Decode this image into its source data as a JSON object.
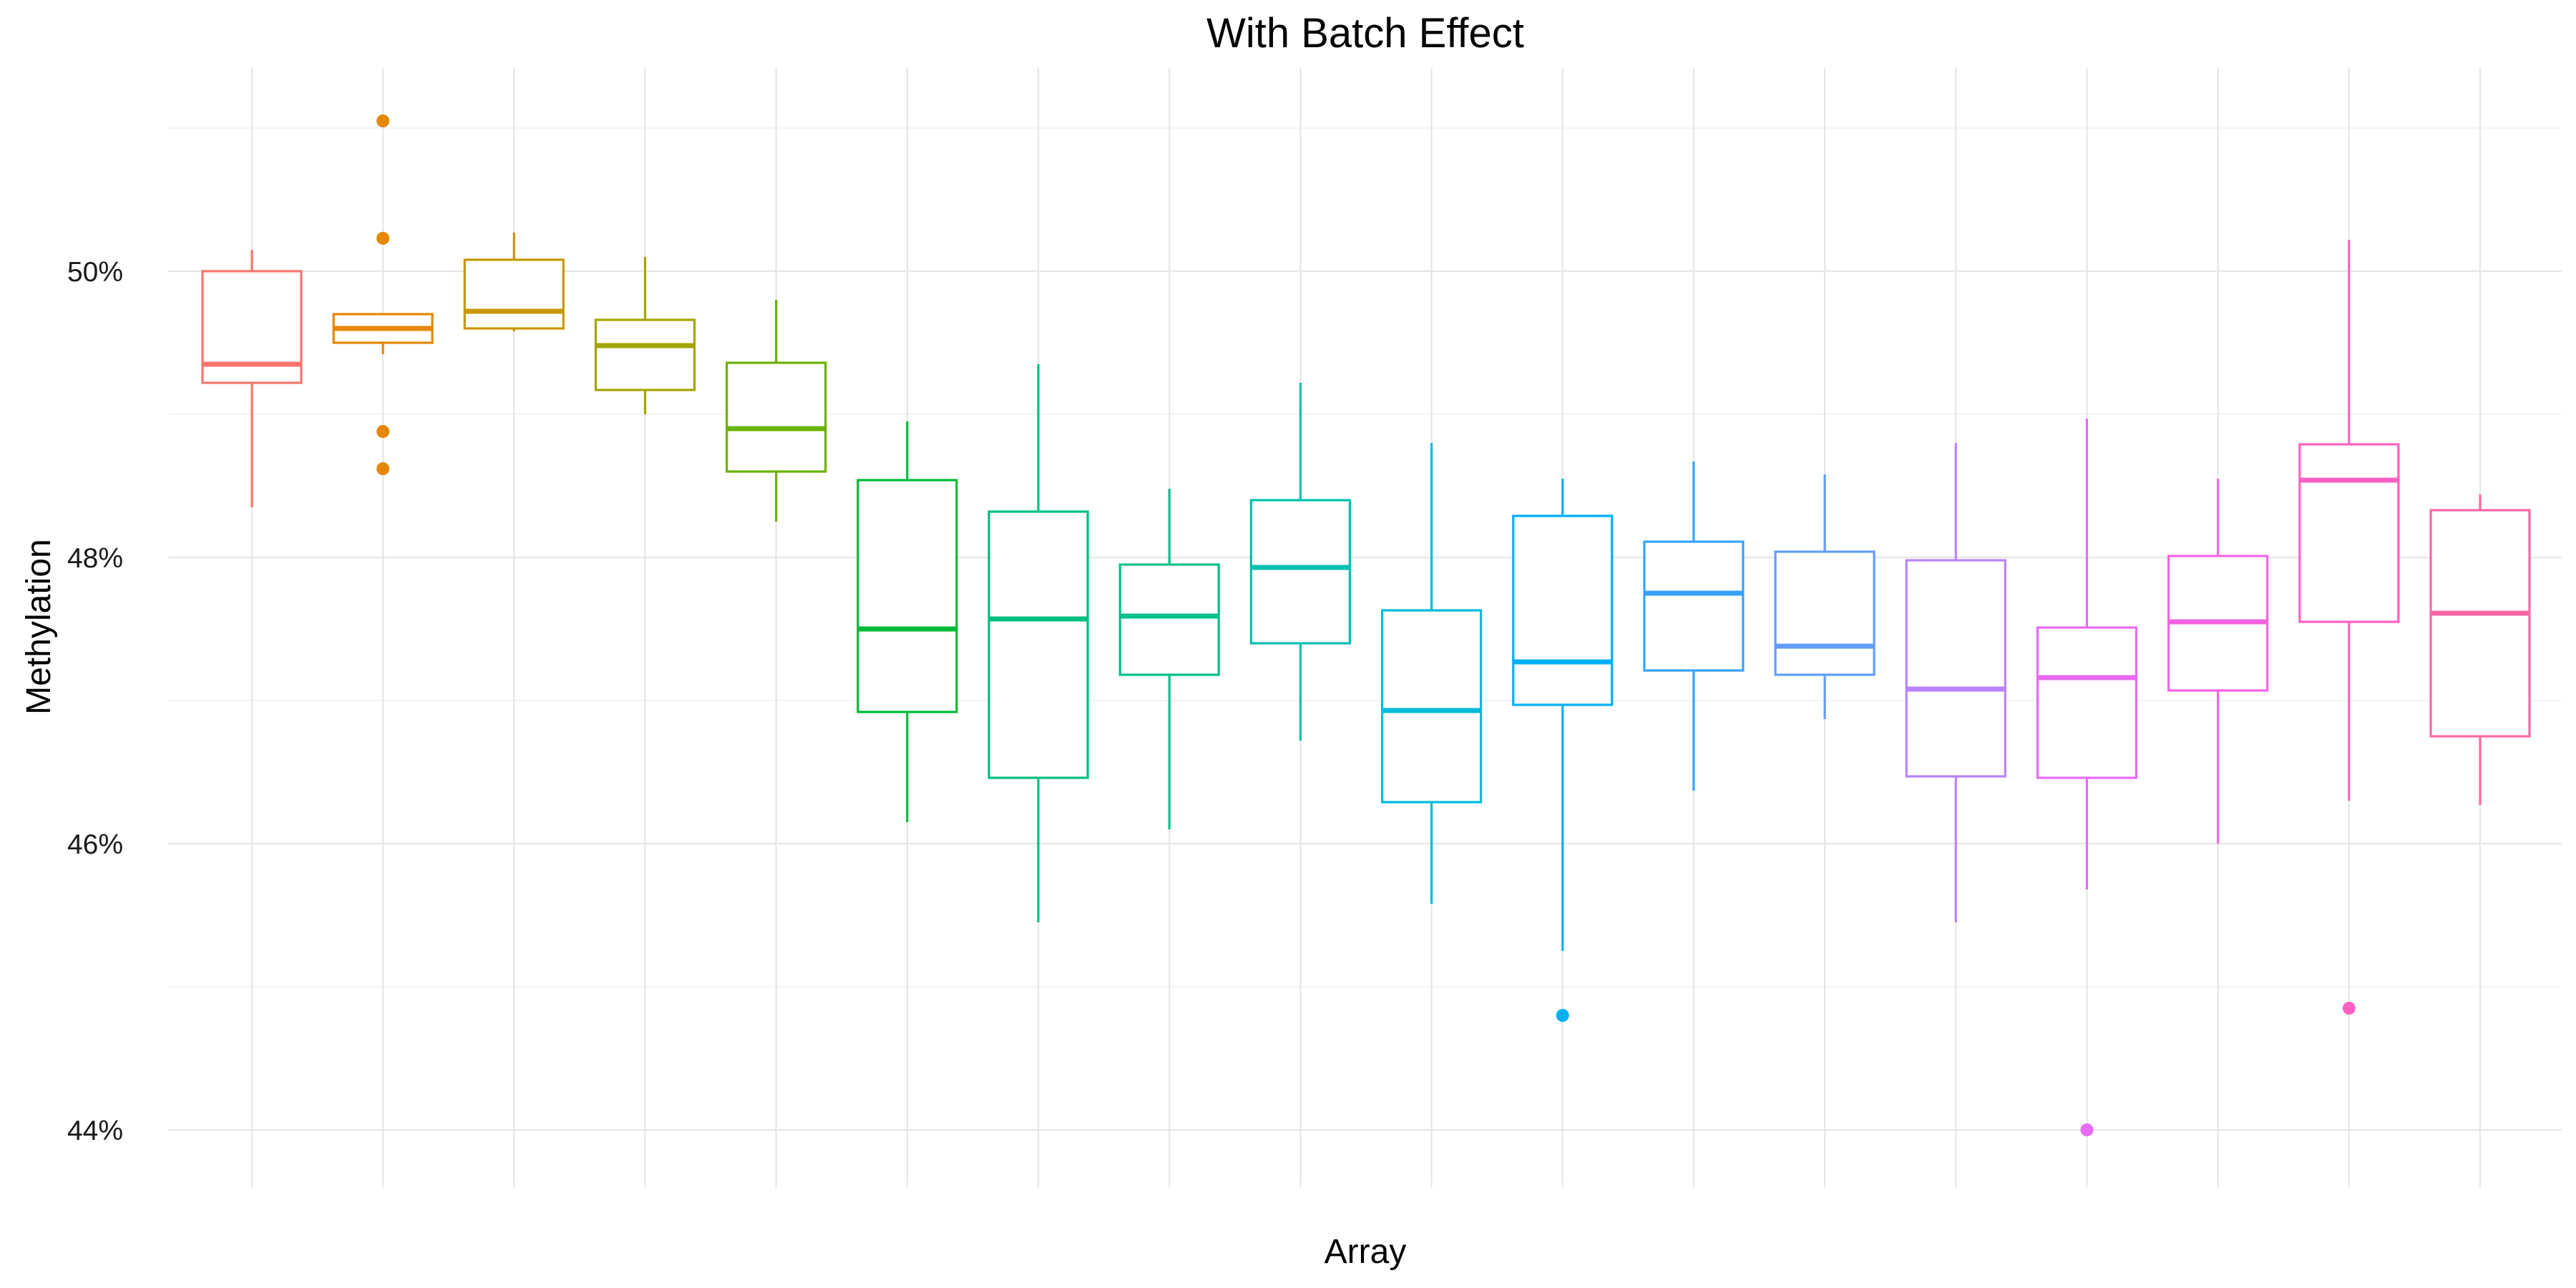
{
  "chart_data": {
    "type": "boxplot",
    "title": "With Batch Effect",
    "xlabel": "Array",
    "ylabel": "Methylation",
    "ylim": [
      43.8,
      51.3
    ],
    "y_ticks": [
      44,
      46,
      48,
      50
    ],
    "y_tick_labels": [
      "44%",
      "46%",
      "48%",
      "50%"
    ],
    "x_tick_labels_shown": false,
    "grid": true,
    "legend": "none",
    "boxes": [
      {
        "index": 1,
        "color": "#F8766D",
        "whisker_low": 48.35,
        "q1": 49.22,
        "median": 49.35,
        "q3": 50.0,
        "whisker_high": 50.15,
        "outliers": []
      },
      {
        "index": 2,
        "color": "#E58700",
        "whisker_low": 49.42,
        "q1": 49.5,
        "median": 49.6,
        "q3": 49.7,
        "whisker_high": 49.7,
        "outliers": [
          51.05,
          50.23,
          48.88,
          48.62
        ]
      },
      {
        "index": 3,
        "color": "#C99800",
        "whisker_low": 49.58,
        "q1": 49.6,
        "median": 49.72,
        "q3": 50.08,
        "whisker_high": 50.27,
        "outliers": []
      },
      {
        "index": 4,
        "color": "#A3A500",
        "whisker_low": 49.0,
        "q1": 49.17,
        "median": 49.48,
        "q3": 49.66,
        "whisker_high": 50.1,
        "outliers": []
      },
      {
        "index": 5,
        "color": "#6BB100",
        "whisker_low": 48.25,
        "q1": 48.6,
        "median": 48.9,
        "q3": 49.36,
        "whisker_high": 49.8,
        "outliers": []
      },
      {
        "index": 6,
        "color": "#00BA38",
        "whisker_low": 46.15,
        "q1": 46.92,
        "median": 47.5,
        "q3": 48.54,
        "whisker_high": 48.95,
        "outliers": []
      },
      {
        "index": 7,
        "color": "#00BF7D",
        "whisker_low": 45.45,
        "q1": 46.46,
        "median": 47.57,
        "q3": 48.32,
        "whisker_high": 49.35,
        "outliers": []
      },
      {
        "index": 8,
        "color": "#00C08B",
        "whisker_low": 46.1,
        "q1": 47.18,
        "median": 47.59,
        "q3": 47.95,
        "whisker_high": 48.48,
        "outliers": []
      },
      {
        "index": 9,
        "color": "#00C0AF",
        "whisker_low": 46.72,
        "q1": 47.4,
        "median": 47.93,
        "q3": 48.4,
        "whisker_high": 49.22,
        "outliers": []
      },
      {
        "index": 10,
        "color": "#00BCD8",
        "whisker_low": 45.58,
        "q1": 46.29,
        "median": 46.93,
        "q3": 47.63,
        "whisker_high": 48.8,
        "outliers": []
      },
      {
        "index": 11,
        "color": "#00B0F6",
        "whisker_low": 45.25,
        "q1": 46.97,
        "median": 47.27,
        "q3": 48.29,
        "whisker_high": 48.55,
        "outliers": [
          44.8
        ]
      },
      {
        "index": 12,
        "color": "#35A2FF",
        "whisker_low": 46.37,
        "q1": 47.21,
        "median": 47.75,
        "q3": 48.11,
        "whisker_high": 48.67,
        "outliers": []
      },
      {
        "index": 13,
        "color": "#619CFF",
        "whisker_low": 46.87,
        "q1": 47.18,
        "median": 47.38,
        "q3": 48.04,
        "whisker_high": 48.58,
        "outliers": []
      },
      {
        "index": 14,
        "color": "#B983FF",
        "whisker_low": 45.45,
        "q1": 46.47,
        "median": 47.08,
        "q3": 47.98,
        "whisker_high": 48.8,
        "outliers": []
      },
      {
        "index": 15,
        "color": "#E76BF3",
        "whisker_low": 45.68,
        "q1": 46.46,
        "median": 47.16,
        "q3": 47.51,
        "whisker_high": 48.97,
        "outliers": [
          44.0
        ]
      },
      {
        "index": 16,
        "color": "#F564E3",
        "whisker_low": 46.0,
        "q1": 47.07,
        "median": 47.55,
        "q3": 48.01,
        "whisker_high": 48.55,
        "outliers": []
      },
      {
        "index": 17,
        "color": "#FF61C3",
        "whisker_low": 46.3,
        "q1": 47.55,
        "median": 48.54,
        "q3": 48.79,
        "whisker_high": 50.22,
        "outliers": [
          44.85
        ]
      },
      {
        "index": 18,
        "color": "#FF67A4",
        "whisker_low": 46.27,
        "q1": 46.75,
        "median": 47.61,
        "q3": 48.33,
        "whisker_high": 48.44,
        "outliers": []
      }
    ]
  }
}
